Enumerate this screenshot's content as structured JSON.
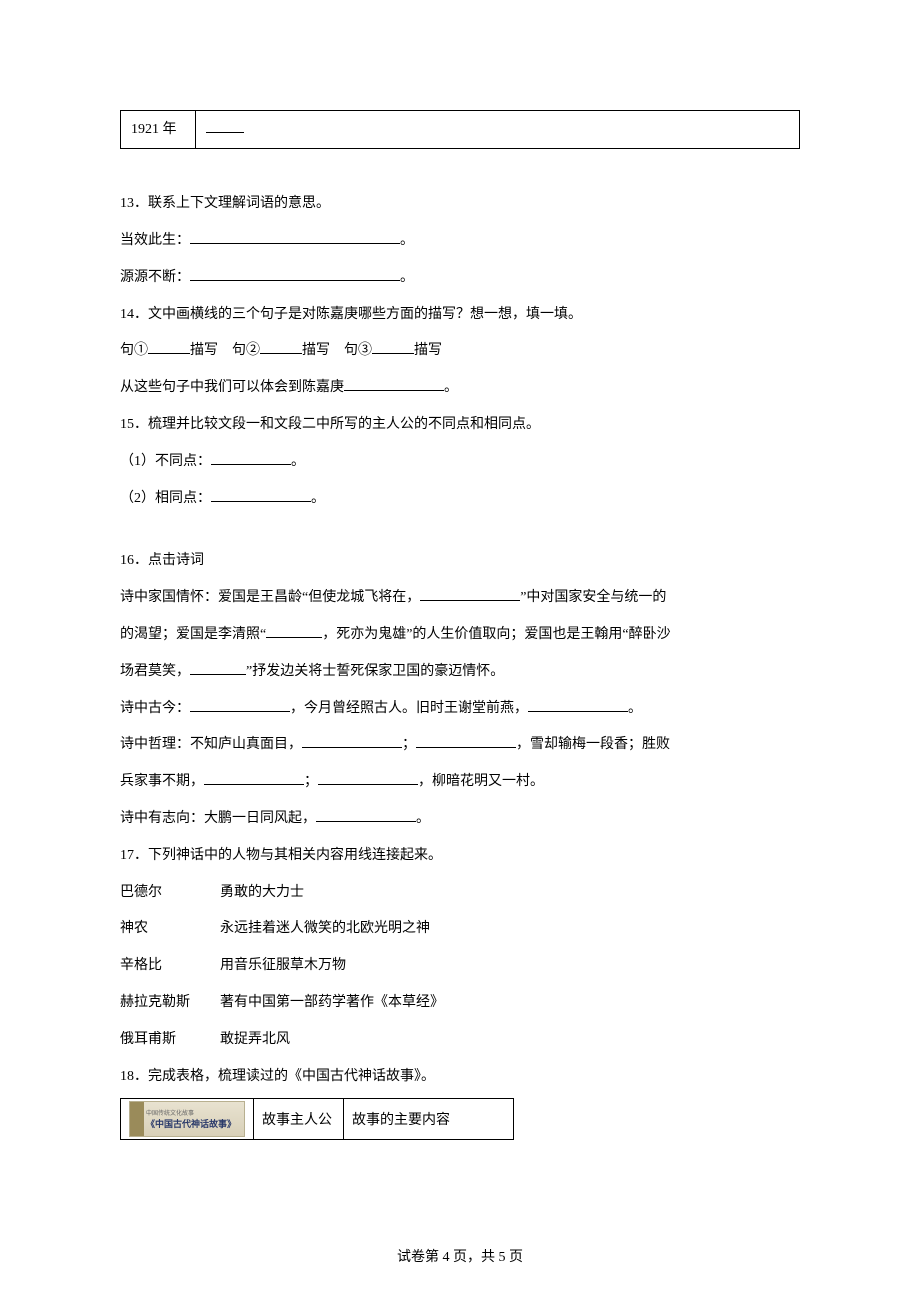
{
  "top_table": {
    "col1": "1921 年",
    "col2_blank": ""
  },
  "q13": {
    "num": "13．",
    "stem": "联系上下文理解词语的意思。",
    "line1_label": "当效此生：",
    "line1_tail": "。",
    "line2_label": "源源不断：",
    "line2_tail": "。"
  },
  "q14": {
    "num": "14．",
    "stem": "文中画横线的三个句子是对陈嘉庚哪些方面的描写？想一想，填一填。",
    "p1": "句①",
    "p2": "描写",
    "p3": "句②",
    "p4": "描写",
    "p5": "句③",
    "p6": "描写",
    "line2_a": "从这些句子中我们可以体会到陈嘉庚",
    "line2_b": "。"
  },
  "q15": {
    "num": "15．",
    "stem": "梳理并比较文段一和文段二中所写的主人公的不同点和相同点。",
    "l1a": "（1）不同点：",
    "l1b": "。",
    "l2a": "（2）相同点：",
    "l2b": "。"
  },
  "q16": {
    "num": "16．",
    "stem": "点击诗词",
    "p1a": "诗中家国情怀：爱国是王昌龄“但使龙城飞将在，",
    "p1b": "”中对国家安全与统一的",
    "p2a": "的渴望；爱国是李清照“",
    "p2b": "，死亦为鬼雄”的人生价值取向；爱国也是王翰用“醉卧沙",
    "p3a": "场君莫笑，",
    "p3b": "”抒发边关将士誓死保家卫国的豪迈情怀。",
    "p4a": "诗中古今：",
    "p4b": "，今月曾经照古人。旧时王谢堂前燕，",
    "p4c": "。",
    "p5a": "诗中哲理：不知庐山真面目，",
    "p5b": "；",
    "p5c": "，雪却输梅一段香；胜败",
    "p6a": "兵家事不期，",
    "p6b": "；",
    "p6c": "，柳暗花明又一村。",
    "p7a": "诗中有志向：大鹏一日同风起，",
    "p7b": "。"
  },
  "q17": {
    "num": "17．",
    "stem": "下列神话中的人物与其相关内容用线连接起来。",
    "rows": [
      {
        "l": "巴德尔",
        "r": "勇敢的大力士"
      },
      {
        "l": "神农",
        "r": "永远挂着迷人微笑的北欧光明之神"
      },
      {
        "l": "辛格比",
        "r": "用音乐征服草木万物"
      },
      {
        "l": "赫拉克勒斯",
        "r": "著有中国第一部药学著作《本草经》"
      },
      {
        "l": "俄耳甫斯",
        "r": "敢捉弄北风"
      }
    ]
  },
  "q18": {
    "num": "18．",
    "stem": "完成表格，梳理读过的《中国古代神话故事》。",
    "thumb_top": "中国传统文化故事",
    "thumb_title": "《中国古代神话故事》",
    "col2": "故事主人公",
    "col3": "故事的主要内容"
  },
  "footer": "试卷第 4 页，共 5 页"
}
